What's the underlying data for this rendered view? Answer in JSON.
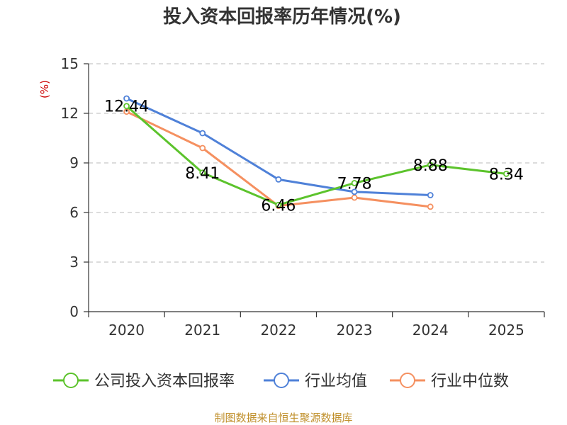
{
  "chart_data": {
    "type": "line",
    "title": "投入资本回报率历年情况(%)",
    "xlabel": "",
    "ylabel": "(%)",
    "categories": [
      "2020",
      "2021",
      "2022",
      "2023",
      "2024",
      "2025"
    ],
    "ylim": [
      0,
      15
    ],
    "yticks": [
      "0",
      "3",
      "6",
      "9",
      "12",
      "15"
    ],
    "grid": true,
    "legend_position": "bottom",
    "series": [
      {
        "name": "公司投入资本回报率",
        "color": "#5cc32c",
        "values": [
          12.44,
          8.41,
          6.46,
          7.78,
          8.88,
          8.34
        ],
        "labels": [
          "12.44",
          "8.41",
          "6.46",
          "7.78",
          "8.88",
          "8.34"
        ]
      },
      {
        "name": "行业均值",
        "color": "#4f81d8",
        "values": [
          12.9,
          10.8,
          8.0,
          7.25,
          7.05,
          null
        ],
        "labels": []
      },
      {
        "name": "行业中位数",
        "color": "#f59060",
        "values": [
          12.1,
          9.9,
          6.4,
          6.9,
          6.35,
          null
        ],
        "labels": []
      }
    ]
  },
  "footer": "制图数据来自恒生聚源数据库"
}
